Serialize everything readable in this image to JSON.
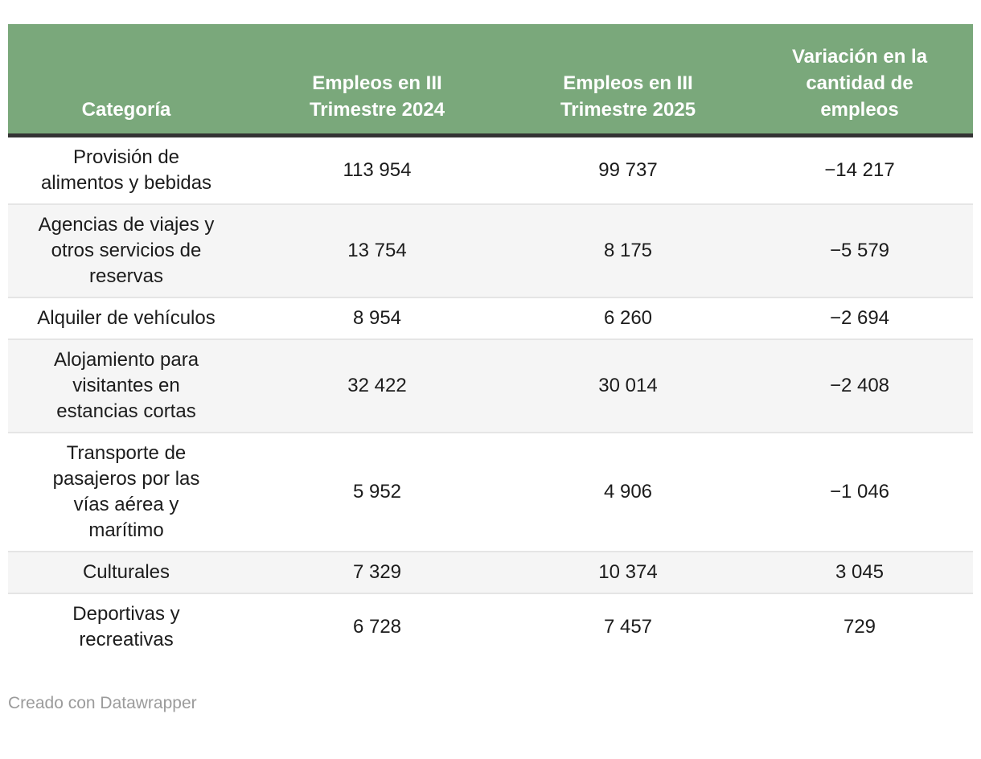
{
  "colors": {
    "header_background": "#7aa87b",
    "header_text": "#ffffff",
    "header_rule": "#333333",
    "row_alt_background": "#f5f5f5",
    "body_text": "#1c1c1c",
    "footer_text": "#9b9b9b"
  },
  "header": {
    "columns": [
      "Categoría",
      "Empleos en III\nTrimestre 2024",
      "Empleos en III\nTrimestre 2025",
      "Variación en la\ncantidad de\nempleos"
    ]
  },
  "display": {
    "rows": [
      [
        "Provisión de\nalimentos y bebidas",
        "113 954",
        "99 737",
        "−14 217"
      ],
      [
        "Agencias de viajes y\notros servicios de\nreservas",
        "13 754",
        "8 175",
        "−5 579"
      ],
      [
        "Alquiler de vehículos",
        "8 954",
        "6 260",
        "−2 694"
      ],
      [
        "Alojamiento para\nvisitantes en\nestancias cortas",
        "32 422",
        "30 014",
        "−2 408"
      ],
      [
        "Transporte de\npasajeros por las\nvías aérea y\nmarítimo",
        "5 952",
        "4 906",
        "−1 046"
      ],
      [
        "Culturales",
        "7 329",
        "10 374",
        "3 045"
      ],
      [
        "Deportivas y\nrecreativas",
        "6 728",
        "7 457",
        "729"
      ]
    ]
  },
  "footer": {
    "credit": "Creado con Datawrapper"
  },
  "chart_data": {
    "type": "table",
    "columns": [
      "Categoría",
      "Empleos en III Trimestre 2024",
      "Empleos en III Trimestre 2025",
      "Variación en la cantidad de empleos"
    ],
    "rows": [
      [
        "Provisión de alimentos y bebidas",
        113954,
        99737,
        -14217
      ],
      [
        "Agencias de viajes y otros servicios de reservas",
        13754,
        8175,
        -5579
      ],
      [
        "Alquiler de vehículos",
        8954,
        6260,
        -2694
      ],
      [
        "Alojamiento para visitantes en estancias cortas",
        32422,
        30014,
        -2408
      ],
      [
        "Transporte de pasajeros por las vías aérea y marítimo",
        5952,
        4906,
        -1046
      ],
      [
        "Culturales",
        7329,
        10374,
        3045
      ],
      [
        "Deportivas y recreativas",
        6728,
        7457,
        729
      ]
    ]
  }
}
